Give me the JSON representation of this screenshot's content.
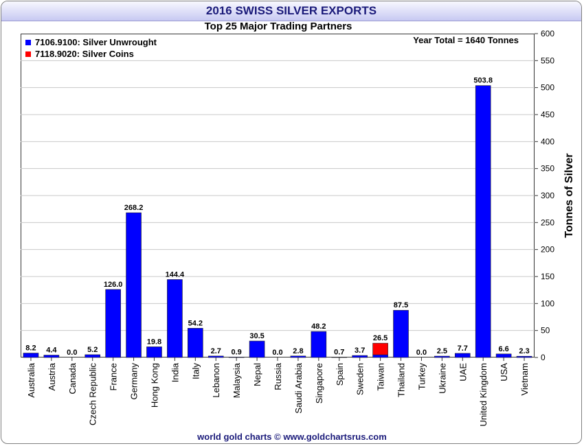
{
  "title": "2016 SWISS SILVER EXPORTS",
  "footer": "world gold charts © www.goldchartsrus.com",
  "chart_data": {
    "type": "bar",
    "title": "Top 25 Major Trading Partners",
    "ylabel": "Tonnes of Silver",
    "xlabel": "",
    "ylim": [
      0,
      600
    ],
    "ytick_step": 50,
    "yaxis_side": "right",
    "grid": true,
    "annotation": "Year Total = 1640 Tonnes",
    "legend_position": "top-left",
    "legend": [
      {
        "name": "7106.9100: Silver Unwrought",
        "color": "#0000ff"
      },
      {
        "name": "7118.9020: Silver Coins",
        "color": "#ff0000"
      }
    ],
    "categories": [
      "Australia",
      "Austria",
      "Canada",
      "Czech Republic",
      "France",
      "Germany",
      "Hong Kong",
      "India",
      "Italy",
      "Lebanon",
      "Malaysia",
      "Nepal",
      "Russia",
      "Saudi Arabia",
      "Singapore",
      "Spain",
      "Sweden",
      "Taiwan",
      "Thailand",
      "Turkey",
      "Ukraine",
      "UAE",
      "United Kingdom",
      "USA",
      "Vietnam"
    ],
    "value_labels": [
      "8.2",
      "4.4",
      "0.0",
      "5.2",
      "126.0",
      "268.2",
      "19.8",
      "144.4",
      "54.2",
      "2.7",
      "0.9",
      "30.5",
      "0.0",
      "2.8",
      "48.2",
      "0.7",
      "3.7",
      "26.5",
      "87.5",
      "0.0",
      "2.5",
      "7.7",
      "503.8",
      "6.6",
      "2.3"
    ],
    "series": [
      {
        "name": "7106.9100: Silver Unwrought",
        "color": "#0000ff",
        "values": [
          8.2,
          4.4,
          0.0,
          5.2,
          126.0,
          268.2,
          19.8,
          144.4,
          54.2,
          2.7,
          0.9,
          30.5,
          0.0,
          2.8,
          48.2,
          0.7,
          3.7,
          5.0,
          87.5,
          0.0,
          2.5,
          7.7,
          503.8,
          6.6,
          2.3
        ]
      },
      {
        "name": "7118.9020: Silver Coins",
        "color": "#ff0000",
        "values": [
          0,
          0,
          0,
          0,
          0,
          0,
          0,
          0,
          0,
          0,
          0,
          0,
          0,
          0,
          0,
          0,
          0,
          21.5,
          0,
          0,
          0,
          0,
          0,
          0,
          0
        ]
      }
    ]
  }
}
